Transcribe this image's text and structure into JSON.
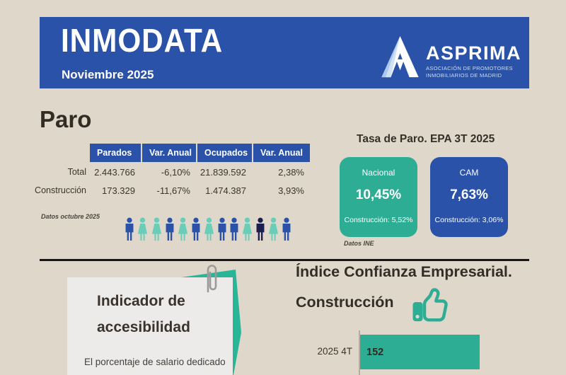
{
  "header": {
    "title": "INMODATA",
    "subtitle": "Noviembre 2025",
    "logo": {
      "name": "ASPRIMA",
      "tagline_line1": "ASOCIACIÓN DE PROMOTORES",
      "tagline_line2": "INMOBILIARIOS DE MADRID"
    }
  },
  "paro": {
    "title": "Paro",
    "table": {
      "columns": [
        "Parados",
        "Var. Anual",
        "Ocupados",
        "Var. Anual"
      ],
      "rows": [
        {
          "label": "Total",
          "values": [
            "2.443.766",
            "-6,10%",
            "21.839.592",
            "2,38%"
          ]
        },
        {
          "label": "Construcción",
          "values": [
            "173.329",
            "-11,67%",
            "1.474.387",
            "3,93%"
          ]
        }
      ]
    },
    "source_note": "Datos octubre 2025",
    "people_icons": [
      {
        "type": "man",
        "color": "#2a52a8"
      },
      {
        "type": "woman",
        "color": "#69cdb8"
      },
      {
        "type": "woman",
        "color": "#69cdb8"
      },
      {
        "type": "man",
        "color": "#2a52a8"
      },
      {
        "type": "woman",
        "color": "#69cdb8"
      },
      {
        "type": "man",
        "color": "#2a52a8"
      },
      {
        "type": "woman",
        "color": "#69cdb8"
      },
      {
        "type": "man",
        "color": "#2a52a8"
      },
      {
        "type": "man",
        "color": "#2a52a8"
      },
      {
        "type": "woman",
        "color": "#69cdb8"
      },
      {
        "type": "man",
        "color": "#1b1e4e"
      },
      {
        "type": "woman",
        "color": "#69cdb8"
      },
      {
        "type": "man",
        "color": "#2a52a8"
      }
    ]
  },
  "tasa_paro": {
    "title": "Tasa de Paro. EPA 3T 2025",
    "cards": [
      {
        "name": "Nacional",
        "rate": "10,45%",
        "construction": "Construcción: 5,52%",
        "color": "#2dad93"
      },
      {
        "name": "CAM",
        "rate": "7,63%",
        "construction": "Construcción: 3,06%",
        "color": "#2a52a8"
      }
    ],
    "source_note": "Datos INE"
  },
  "accesibilidad": {
    "title_line1": "Indicador de",
    "title_line2": "accesibilidad",
    "body_text": "El porcentaje de salario dedicado"
  },
  "confianza": {
    "title_line1": "Índice Confianza Empresarial.",
    "title_line2": "Construcción"
  },
  "chart_data": {
    "type": "bar",
    "orientation": "horizontal",
    "title": "Índice Confianza Empresarial. Construcción",
    "categories": [
      "2025 4T"
    ],
    "values": [
      152
    ],
    "value_labels_inside_bar": true,
    "legend": "none",
    "grid": "off"
  },
  "colors": {
    "primary_blue": "#2a52a8",
    "teal": "#2dad93",
    "teal_light": "#69cdb8",
    "flap_teal": "#29b698",
    "navy": "#1b1e4e",
    "background": "#ded7ca",
    "card_gray": "#ecebe9",
    "text_dark": "#332d26"
  }
}
